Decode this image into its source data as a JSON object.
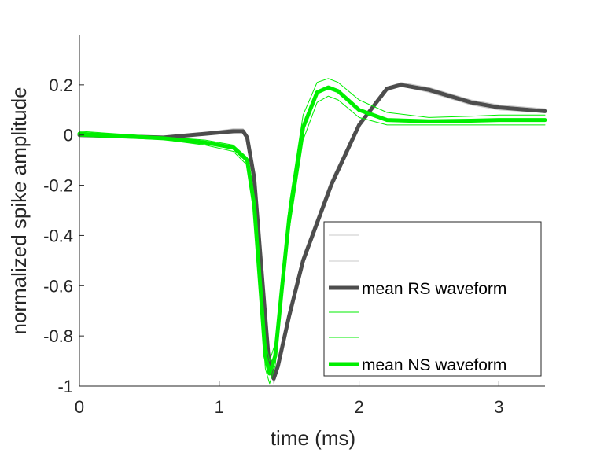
{
  "chart_data": {
    "type": "line",
    "title": "",
    "xlabel": "time (ms)",
    "ylabel": "normalized spike amplitude",
    "xlim": [
      0,
      3.33
    ],
    "ylim": [
      -1,
      0.4
    ],
    "xticks": [
      0,
      1,
      2,
      3
    ],
    "xtick_labels": [
      "0",
      "1",
      "2",
      "3"
    ],
    "yticks": [
      0.2,
      0,
      -0.2,
      -0.4,
      -0.6,
      -0.8,
      -1
    ],
    "ytick_labels": [
      "0.2",
      "0",
      "-0.2",
      "-0.4",
      "-0.6",
      "-0.8",
      "-1"
    ],
    "grid": false,
    "legend_position": "bottom-right",
    "series": [
      {
        "name": "",
        "color": "#c8c8c8",
        "width": 1,
        "x": [
          0,
          0.6,
          0.9,
          1.1,
          1.17,
          1.2,
          1.25,
          1.3,
          1.35,
          1.39,
          1.42,
          1.5,
          1.6,
          1.8,
          2.0,
          2.2,
          2.3,
          2.5,
          2.8,
          3.0,
          3.33
        ],
        "y": [
          0.005,
          -0.005,
          0.01,
          0.025,
          0.025,
          0.0,
          -0.15,
          -0.5,
          -0.85,
          -0.95,
          -0.9,
          -0.7,
          -0.48,
          -0.18,
          0.05,
          0.175,
          0.195,
          0.17,
          0.12,
          0.1,
          0.09
        ]
      },
      {
        "name": "",
        "color": "#c8c8c8",
        "width": 1,
        "x": [
          0,
          0.6,
          0.9,
          1.1,
          1.17,
          1.2,
          1.25,
          1.3,
          1.35,
          1.39,
          1.42,
          1.5,
          1.6,
          1.8,
          2.0,
          2.2,
          2.3,
          2.5,
          2.8,
          3.0,
          3.33
        ],
        "y": [
          -0.005,
          -0.015,
          0.0,
          0.008,
          0.01,
          -0.02,
          -0.18,
          -0.54,
          -0.89,
          -0.99,
          -0.94,
          -0.74,
          -0.52,
          -0.21,
          0.03,
          0.19,
          0.21,
          0.19,
          0.14,
          0.12,
          0.105
        ]
      },
      {
        "name": "mean RS waveform",
        "color": "#4d4d4d",
        "width": 5,
        "x": [
          0,
          0.6,
          0.9,
          1.1,
          1.17,
          1.2,
          1.25,
          1.3,
          1.35,
          1.39,
          1.42,
          1.5,
          1.6,
          1.8,
          2.0,
          2.2,
          2.3,
          2.5,
          2.8,
          3.0,
          3.33
        ],
        "y": [
          0.0,
          -0.01,
          0.005,
          0.015,
          0.015,
          -0.01,
          -0.17,
          -0.52,
          -0.87,
          -0.97,
          -0.92,
          -0.72,
          -0.5,
          -0.2,
          0.04,
          0.185,
          0.2,
          0.18,
          0.13,
          0.11,
          0.095
        ]
      },
      {
        "name": "",
        "color": "#00ee00",
        "width": 1,
        "x": [
          0,
          0.6,
          0.9,
          1.1,
          1.2,
          1.25,
          1.3,
          1.33,
          1.36,
          1.4,
          1.45,
          1.5,
          1.6,
          1.7,
          1.78,
          1.85,
          2.0,
          2.2,
          2.5,
          2.8,
          3.0,
          3.33
        ],
        "y": [
          0.015,
          -0.008,
          -0.02,
          -0.04,
          -0.09,
          -0.25,
          -0.6,
          -0.82,
          -0.9,
          -0.83,
          -0.55,
          -0.28,
          0.08,
          0.21,
          0.225,
          0.21,
          0.14,
          0.09,
          0.07,
          0.075,
          0.08,
          0.08
        ]
      },
      {
        "name": "",
        "color": "#00ee00",
        "width": 1,
        "x": [
          0,
          0.6,
          0.9,
          1.1,
          1.2,
          1.25,
          1.3,
          1.33,
          1.36,
          1.4,
          1.45,
          1.5,
          1.6,
          1.7,
          1.78,
          1.85,
          2.0,
          2.2,
          2.5,
          2.8,
          3.0,
          3.33
        ],
        "y": [
          -0.005,
          -0.018,
          -0.04,
          -0.065,
          -0.12,
          -0.32,
          -0.7,
          -0.93,
          -0.99,
          -0.92,
          -0.65,
          -0.38,
          -0.02,
          0.13,
          0.155,
          0.14,
          0.07,
          0.04,
          0.04,
          0.04,
          0.04,
          0.04
        ]
      },
      {
        "name": "mean NS waveform",
        "color": "#00ee00",
        "width": 5,
        "x": [
          0,
          0.6,
          0.9,
          1.1,
          1.2,
          1.25,
          1.3,
          1.33,
          1.36,
          1.4,
          1.45,
          1.5,
          1.6,
          1.7,
          1.78,
          1.85,
          2.0,
          2.2,
          2.5,
          2.8,
          3.0,
          3.33
        ],
        "y": [
          0.005,
          -0.013,
          -0.03,
          -0.05,
          -0.1,
          -0.28,
          -0.65,
          -0.88,
          -0.95,
          -0.88,
          -0.6,
          -0.33,
          0.03,
          0.17,
          0.19,
          0.175,
          0.1,
          0.06,
          0.055,
          0.057,
          0.06,
          0.06
        ]
      }
    ]
  }
}
